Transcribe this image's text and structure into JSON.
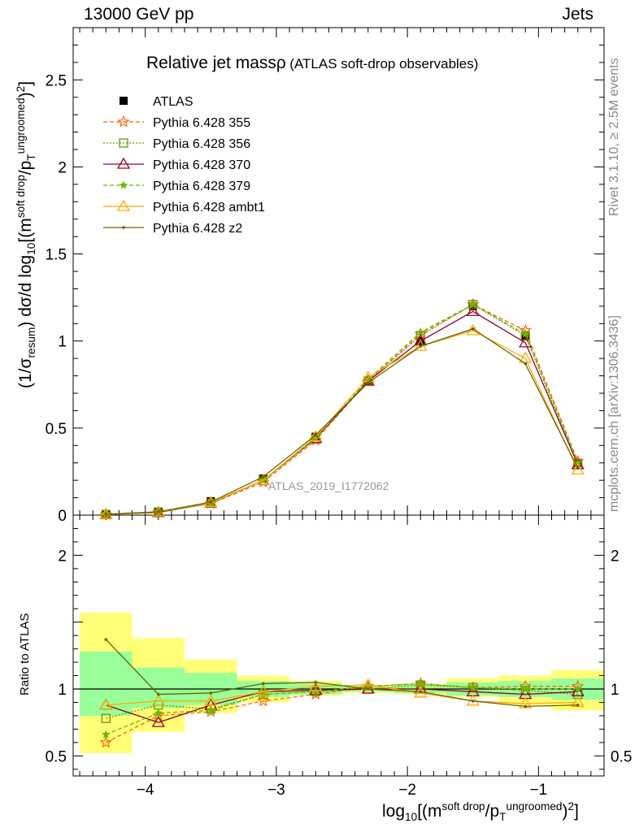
{
  "header": {
    "left": "13000 GeV pp",
    "right": "Jets"
  },
  "side_labels": {
    "rivet": "Rivet 3.1.10, ≥ 2.5M events",
    "mcplots": "mcplots.cern.ch [arXiv:1306.3436]"
  },
  "plot_title": {
    "main": "Relative jet massρ",
    "sub": "(ATLAS soft-drop observables)"
  },
  "watermark": "ATLAS_2019_I1772062",
  "axis_labels": {
    "y_main_prefix": "(1/σ",
    "y_main_sub": "resum",
    "y_main_mid": ") dσ/d log",
    "y_main_sub2": "10",
    "y_main_mid2": "[(m",
    "y_main_sup": "soft drop",
    "y_main_mid3": "/p",
    "y_main_sub3": "T",
    "y_main_sup2": "ungroomed",
    "y_main_end": ")",
    "y_main_sup3": "2",
    "y_main_close": "]",
    "y_ratio": "Ratio to ATLAS",
    "x_prefix": "log",
    "x_sub": "10",
    "x_mid": "[(m",
    "x_sup": "soft drop",
    "x_mid2": "/p",
    "x_sub2": "T",
    "x_sup2": "ungroomed",
    "x_end": ")",
    "x_sup3": "2",
    "x_close": "]"
  },
  "chart_data": [
    {
      "type": "line",
      "panel": "main",
      "xlim": [
        -4.55,
        -0.5
      ],
      "ylim": [
        0,
        2.8
      ],
      "x_ticks": [
        -4,
        -3,
        -2,
        -1
      ],
      "x_tick_labels": [
        "−4",
        "−3",
        "−2",
        "−1"
      ],
      "y_ticks": [
        0,
        0.5,
        1,
        1.5,
        2,
        2.5
      ],
      "y_tick_labels": [
        "0",
        "0.5",
        "1",
        "1.5",
        "2",
        "2.5"
      ],
      "legend_placement": "top-left",
      "x": [
        -4.3,
        -3.9,
        -3.5,
        -3.1,
        -2.7,
        -2.3,
        -1.9,
        -1.5,
        -1.1,
        -0.7
      ],
      "series": [
        {
          "name": "ATLAS",
          "color": "#000000",
          "marker": "square-filled",
          "dash": "none",
          "values": [
            0.005,
            0.02,
            0.08,
            0.21,
            0.45,
            0.77,
            1.0,
            1.2,
            1.03,
            0.3
          ]
        },
        {
          "name": "Pythia 6.428 355",
          "color": "#ff6600",
          "marker": "star",
          "dash": "dashed",
          "values": [
            0.003,
            0.016,
            0.066,
            0.19,
            0.43,
            0.77,
            1.04,
            1.21,
            1.06,
            0.31
          ]
        },
        {
          "name": "Pythia 6.428 356",
          "color": "#669900",
          "marker": "square-open",
          "dash": "dotted",
          "values": [
            0.004,
            0.018,
            0.068,
            0.2,
            0.44,
            0.77,
            1.03,
            1.21,
            1.03,
            0.29
          ]
        },
        {
          "name": "Pythia 6.428 370",
          "color": "#990022",
          "marker": "triangle-open",
          "dash": "none",
          "values": [
            0.004,
            0.015,
            0.07,
            0.2,
            0.44,
            0.77,
            1.0,
            1.17,
            0.99,
            0.29
          ]
        },
        {
          "name": "Pythia 6.428 379",
          "color": "#66bb00",
          "marker": "star-small",
          "dash": "dashed",
          "values": [
            0.004,
            0.016,
            0.068,
            0.2,
            0.44,
            0.78,
            1.05,
            1.21,
            1.04,
            0.3
          ]
        },
        {
          "name": "Pythia 6.428 ambt1",
          "color": "#ffaa00",
          "marker": "triangle-open",
          "dash": "none",
          "values": [
            0.004,
            0.018,
            0.072,
            0.2,
            0.45,
            0.79,
            0.97,
            1.06,
            0.9,
            0.26
          ]
        },
        {
          "name": "Pythia 6.428 z2",
          "color": "#666600",
          "marker": "dot",
          "dash": "none",
          "values": [
            0.006,
            0.019,
            0.075,
            0.22,
            0.46,
            0.76,
            0.97,
            1.07,
            0.87,
            0.27
          ]
        }
      ]
    },
    {
      "type": "line",
      "panel": "ratio",
      "ylim": [
        0.35,
        2.3
      ],
      "y_ticks": [
        0.5,
        1,
        2
      ],
      "y_tick_labels": [
        "0.5",
        "1",
        "2"
      ],
      "reference_line": 1,
      "x": [
        -4.3,
        -3.9,
        -3.5,
        -3.1,
        -2.7,
        -2.3,
        -1.9,
        -1.5,
        -1.1,
        -0.7
      ],
      "bin_edges": [
        -4.5,
        -4.1,
        -3.7,
        -3.3,
        -2.9,
        -2.5,
        -2.1,
        -1.7,
        -1.3,
        -0.9,
        -0.5
      ],
      "band_inner": {
        "color": "#99ff99",
        "low": [
          0.8,
          0.86,
          0.88,
          0.94,
          0.96,
          0.98,
          0.97,
          0.95,
          0.94,
          0.92
        ],
        "high": [
          1.28,
          1.16,
          1.12,
          1.06,
          1.04,
          1.02,
          1.03,
          1.05,
          1.06,
          1.08
        ]
      },
      "band_outer": {
        "color": "#ffff77",
        "low": [
          0.52,
          0.68,
          0.82,
          0.9,
          0.95,
          0.97,
          0.96,
          0.94,
          0.88,
          0.84
        ],
        "high": [
          1.57,
          1.38,
          1.22,
          1.1,
          1.06,
          1.03,
          1.04,
          1.08,
          1.1,
          1.14
        ]
      },
      "series": [
        {
          "name": "Pythia 6.428 355",
          "values": [
            0.6,
            0.8,
            0.83,
            0.91,
            0.96,
            1.02,
            1.04,
            1.01,
            1.02,
            1.02
          ]
        },
        {
          "name": "Pythia 6.428 356",
          "values": [
            0.78,
            0.88,
            0.85,
            0.96,
            0.98,
            1.0,
            1.03,
            1.01,
            0.99,
            0.96
          ]
        },
        {
          "name": "Pythia 6.428 370",
          "values": [
            0.88,
            0.75,
            0.88,
            0.98,
            0.99,
            1.0,
            1.0,
            0.98,
            0.96,
            0.98
          ]
        },
        {
          "name": "Pythia 6.428 379",
          "values": [
            0.66,
            0.82,
            0.84,
            0.96,
            0.98,
            1.02,
            1.04,
            1.01,
            1.0,
            1.0
          ]
        },
        {
          "name": "Pythia 6.428 ambt1",
          "values": [
            0.88,
            0.91,
            0.91,
            0.98,
            1.02,
            1.03,
            0.97,
            0.91,
            0.89,
            0.9
          ]
        },
        {
          "name": "Pythia 6.428 z2",
          "values": [
            1.37,
            0.96,
            0.97,
            1.04,
            1.05,
            1.0,
            0.98,
            0.91,
            0.87,
            0.88
          ]
        }
      ]
    }
  ]
}
